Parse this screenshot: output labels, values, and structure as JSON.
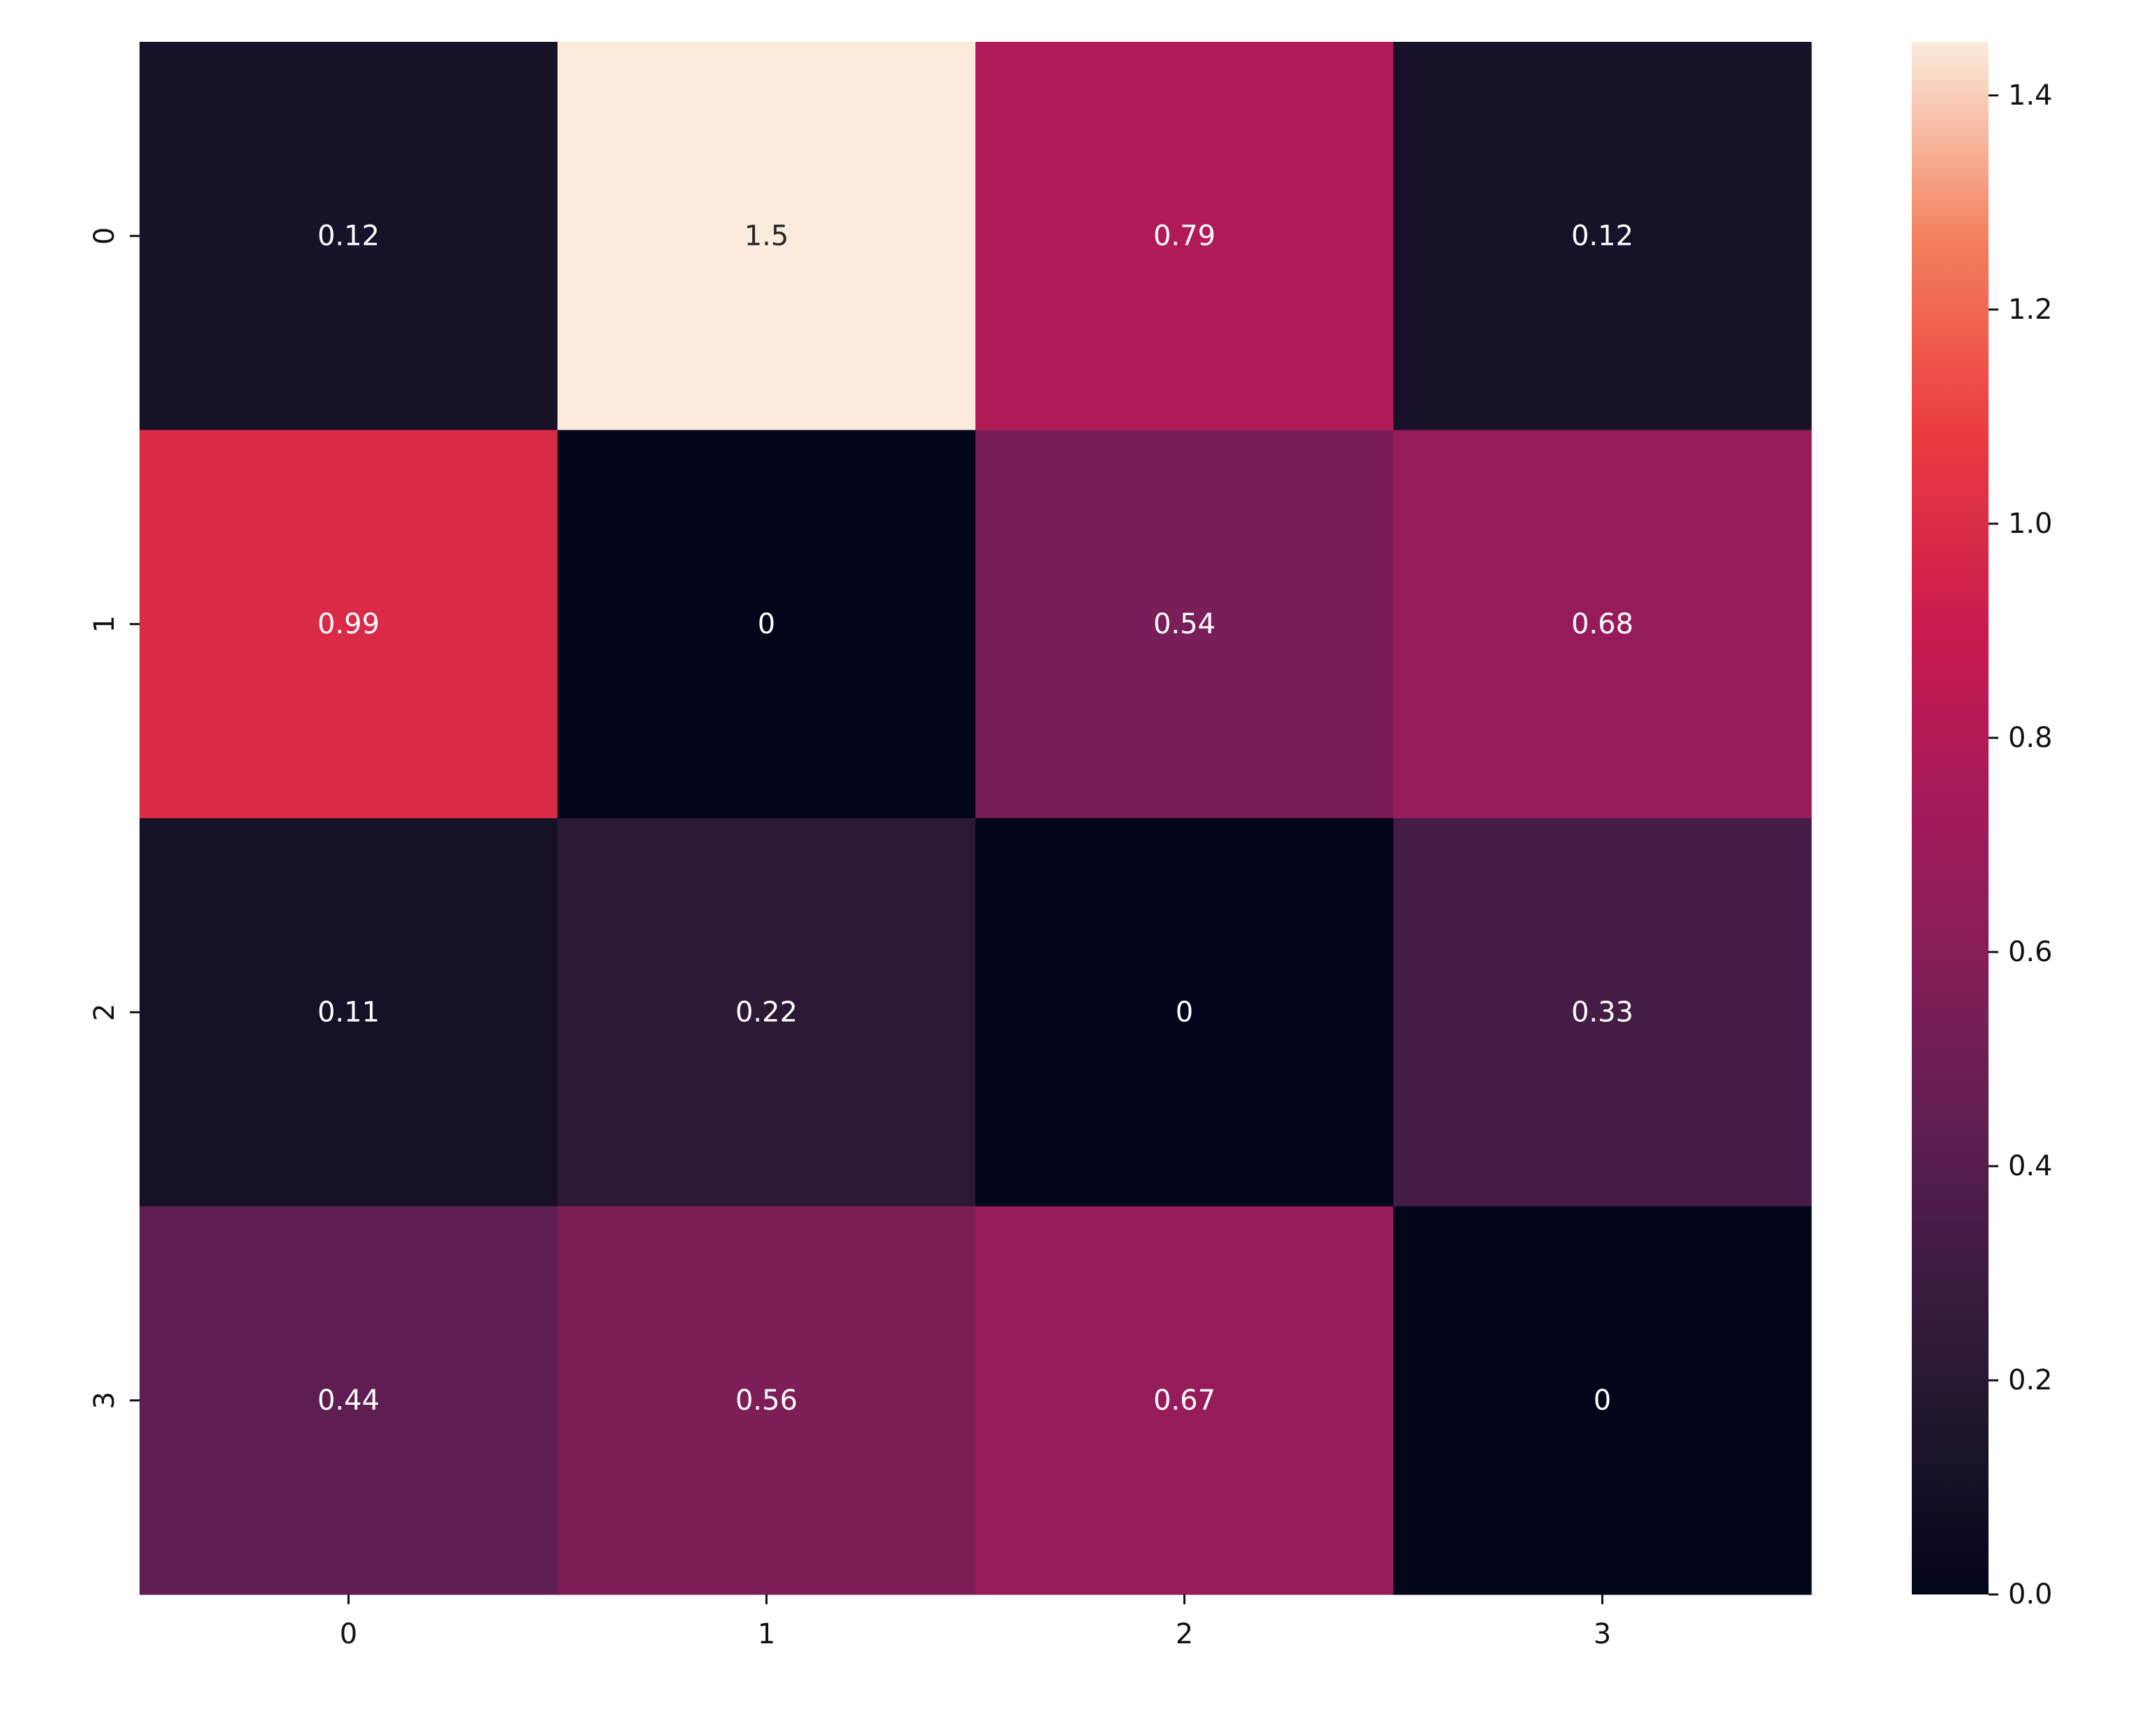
{
  "chart_data": {
    "type": "heatmap",
    "rows": [
      "0",
      "1",
      "2",
      "3"
    ],
    "cols": [
      "0",
      "1",
      "2",
      "3"
    ],
    "values": [
      [
        0.12,
        1.45,
        0.79,
        0.12
      ],
      [
        0.99,
        0,
        0.54,
        0.68
      ],
      [
        0.11,
        0.22,
        0,
        0.33
      ],
      [
        0.44,
        0.56,
        0.67,
        0
      ]
    ],
    "labels": [
      [
        "0.12",
        "1.5",
        "0.79",
        "0.12"
      ],
      [
        "0.99",
        "0",
        "0.54",
        "0.68"
      ],
      [
        "0.11",
        "0.22",
        "0",
        "0.33"
      ],
      [
        "0.44",
        "0.56",
        "0.67",
        "0"
      ]
    ],
    "colorbar": {
      "range": [
        0,
        1.45
      ],
      "ticks": [
        0.0,
        0.2,
        0.4,
        0.6,
        0.8,
        1.0,
        1.2,
        1.4
      ],
      "tick_labels": [
        "0.0",
        "0.2",
        "0.4",
        "0.6",
        "0.8",
        "1.0",
        "1.2",
        "1.4"
      ],
      "colormap": "rocket"
    },
    "title": "",
    "xlabel": "",
    "ylabel": ""
  }
}
